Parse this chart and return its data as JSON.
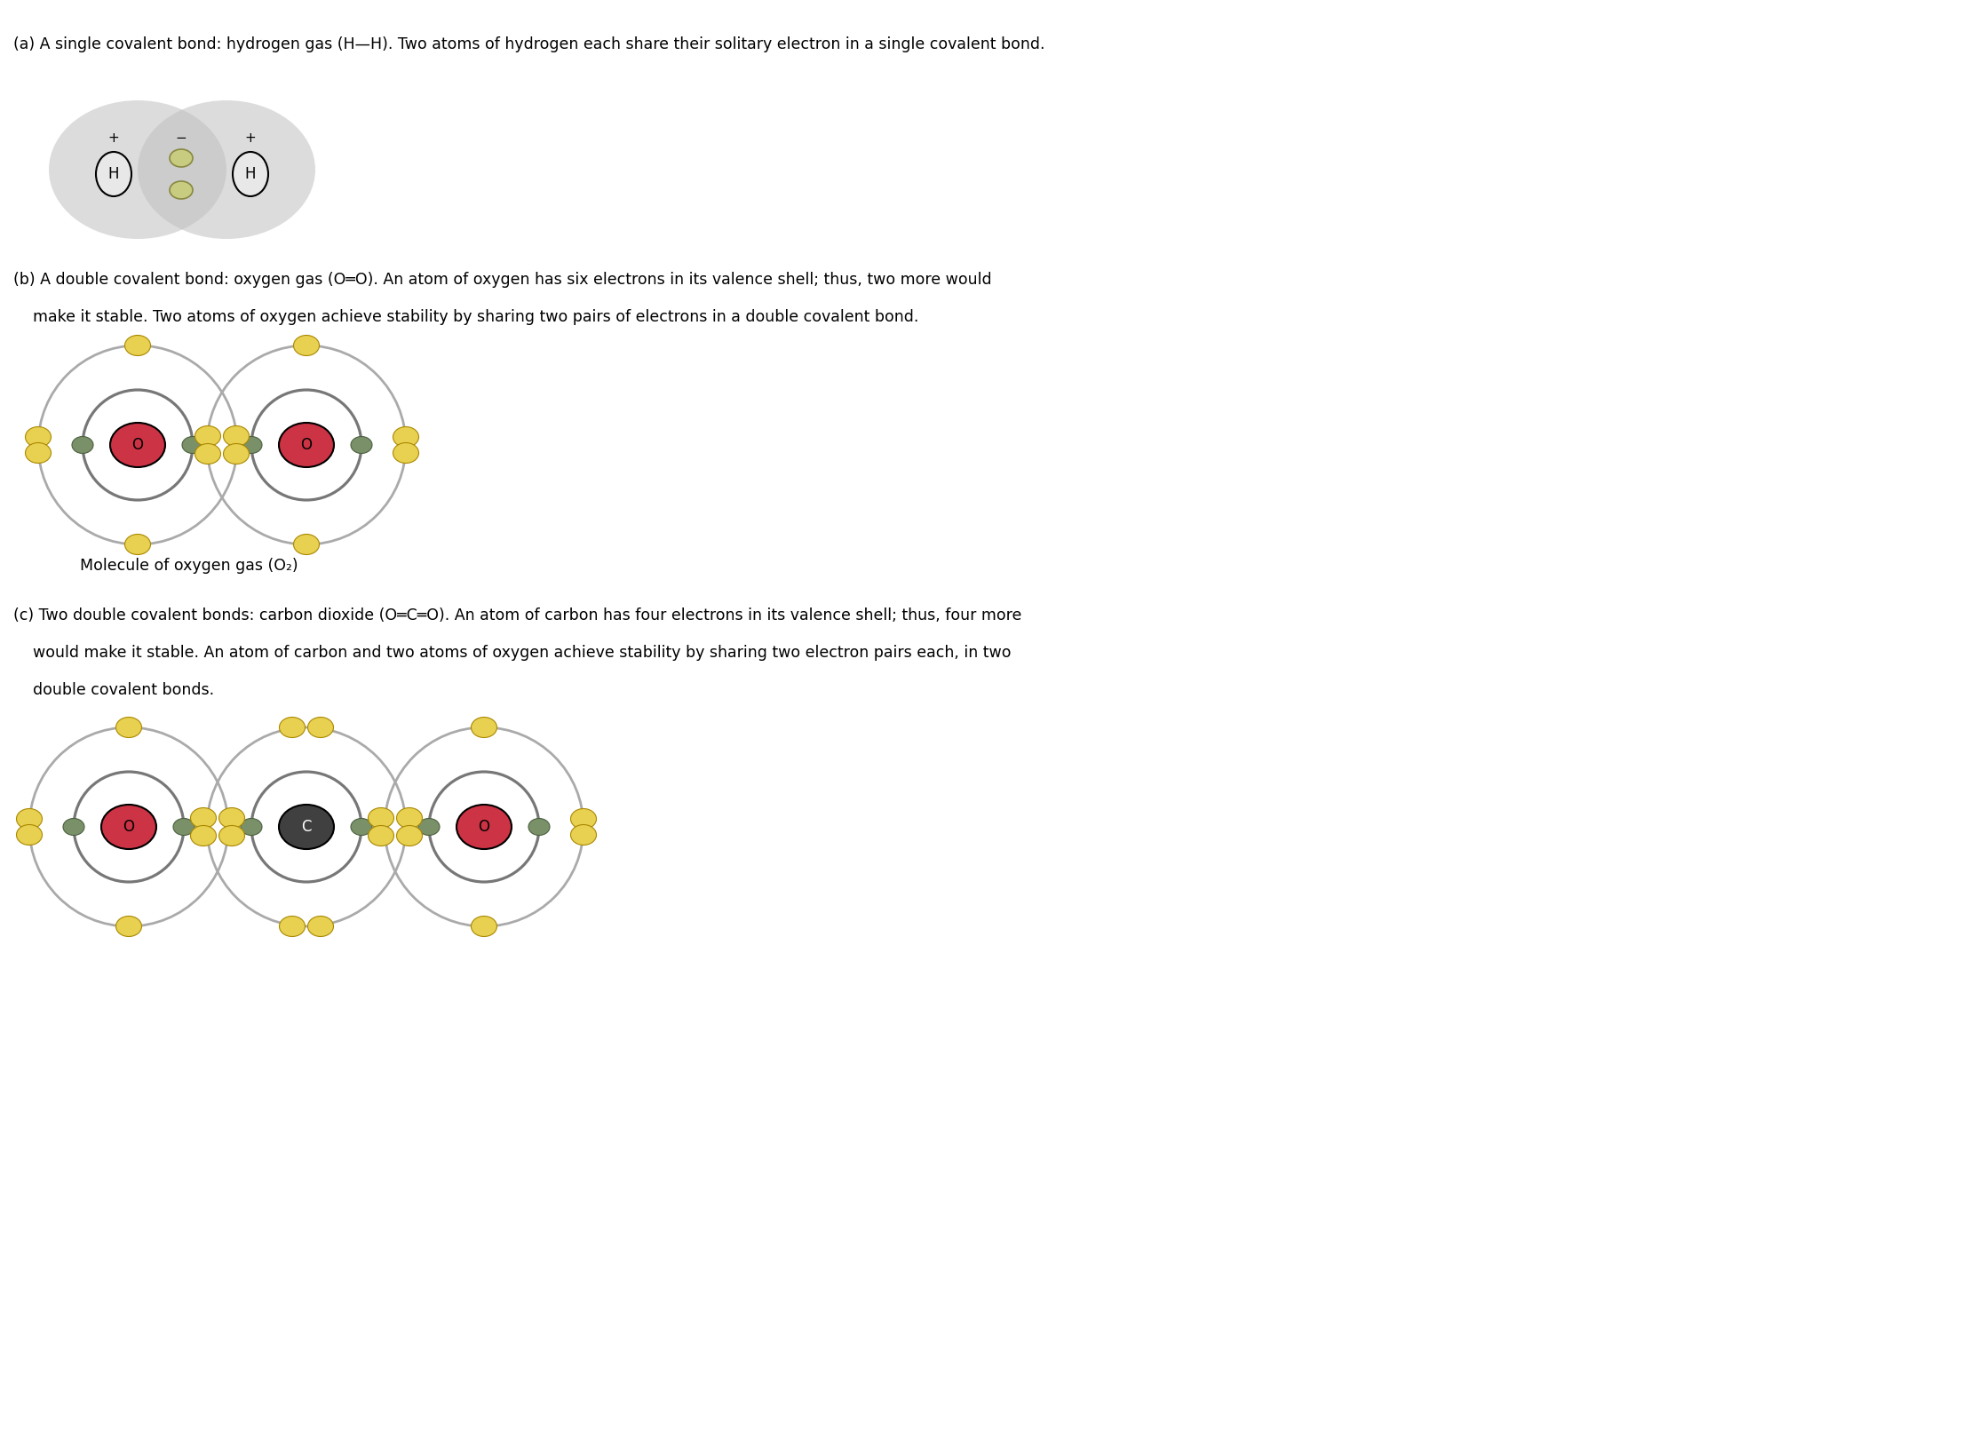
{
  "bg_color": "#ffffff",
  "title_a": "(a) A single covalent bond: hydrogen gas (H—H). Two atoms of hydrogen each share their solitary electron in a single covalent bond.",
  "title_b_line1": "(b) A double covalent bond: oxygen gas (O═O). An atom of oxygen has six electrons in its valence shell; thus, two more would",
  "title_b_line2": "    make it stable. Two atoms of oxygen achieve stability by sharing two pairs of electrons in a double covalent bond.",
  "caption_b": "Molecule of oxygen gas (O₂)",
  "title_c_line1": "(c) Two double covalent bonds: carbon dioxide (O═C═O). An atom of carbon has four electrons in its valence shell; thus, four more",
  "title_c_line2": "    would make it stable. An atom of carbon and two atoms of oxygen achieve stability by sharing two electron pairs each, in two",
  "title_c_line3": "    double covalent bonds.",
  "gray_cloud_color": "#c0c0c0",
  "gray_cloud_alpha": 0.55,
  "h_nucleus_color": "#e8e8e8",
  "h_nucleus_outline": "#000000",
  "h_electron_color": "#c8cc80",
  "h_electron_outline": "#888840",
  "o_nucleus_color": "#cc3344",
  "o_nucleus_outline": "#000000",
  "o_inner_ring_color": "#777777",
  "o_outer_ring_color": "#aaaaaa",
  "o_inner_electron_color": "#7a9068",
  "o_outer_electron_color": "#e8d050",
  "o_outer_electron_outline": "#aa8800",
  "o_inner_electron_outline": "#4a6040",
  "c_nucleus_color": "#404040",
  "c_nucleus_outline": "#000000"
}
